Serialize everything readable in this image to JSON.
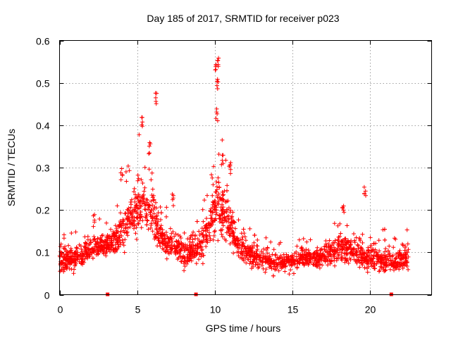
{
  "chart_data": {
    "type": "scatter",
    "title": "Day 185 of 2017, SRMTID for receiver p023",
    "xlabel": "GPS time / hours",
    "ylabel": "SRMTID / TECUs",
    "xlim": [
      0,
      24
    ],
    "ylim": [
      0,
      0.6
    ],
    "xticks": [
      0,
      5,
      10,
      15,
      20
    ],
    "xtick_labels": [
      "0",
      "5",
      "10",
      "15",
      "20"
    ],
    "yticks": [
      0,
      0.1,
      0.2,
      0.3,
      0.4,
      0.5,
      0.6
    ],
    "ytick_labels": [
      "0",
      "0.1",
      "0.2",
      "0.3",
      "0.4",
      "0.5",
      "0.6"
    ],
    "grid": true,
    "marker": "+",
    "color": "#ff0000",
    "gap_markers_x": [
      3.1,
      8.8,
      21.4
    ],
    "envelope": [
      {
        "x": 0.0,
        "mean": 0.08,
        "spread": 0.04
      },
      {
        "x": 1.0,
        "mean": 0.085,
        "spread": 0.045
      },
      {
        "x": 2.0,
        "mean": 0.11,
        "spread": 0.04
      },
      {
        "x": 3.0,
        "mean": 0.115,
        "spread": 0.04
      },
      {
        "x": 4.0,
        "mean": 0.15,
        "spread": 0.07
      },
      {
        "x": 5.0,
        "mean": 0.2,
        "spread": 0.09
      },
      {
        "x": 5.5,
        "mean": 0.22,
        "spread": 0.1
      },
      {
        "x": 6.0,
        "mean": 0.2,
        "spread": 0.1
      },
      {
        "x": 6.5,
        "mean": 0.14,
        "spread": 0.06
      },
      {
        "x": 7.0,
        "mean": 0.12,
        "spread": 0.05
      },
      {
        "x": 8.0,
        "mean": 0.1,
        "spread": 0.05
      },
      {
        "x": 9.0,
        "mean": 0.11,
        "spread": 0.05
      },
      {
        "x": 9.7,
        "mean": 0.17,
        "spread": 0.08
      },
      {
        "x": 10.2,
        "mean": 0.22,
        "spread": 0.12
      },
      {
        "x": 10.8,
        "mean": 0.18,
        "spread": 0.09
      },
      {
        "x": 11.5,
        "mean": 0.12,
        "spread": 0.05
      },
      {
        "x": 12.5,
        "mean": 0.09,
        "spread": 0.04
      },
      {
        "x": 14.0,
        "mean": 0.075,
        "spread": 0.035
      },
      {
        "x": 15.5,
        "mean": 0.085,
        "spread": 0.04
      },
      {
        "x": 17.0,
        "mean": 0.09,
        "spread": 0.04
      },
      {
        "x": 18.0,
        "mean": 0.11,
        "spread": 0.05
      },
      {
        "x": 19.0,
        "mean": 0.1,
        "spread": 0.05
      },
      {
        "x": 20.0,
        "mean": 0.085,
        "spread": 0.045
      },
      {
        "x": 21.5,
        "mean": 0.075,
        "spread": 0.04
      },
      {
        "x": 22.5,
        "mean": 0.09,
        "spread": 0.04
      }
    ],
    "point_count": 2200,
    "peaks": [
      {
        "x": 5.3,
        "y": 0.42
      },
      {
        "x": 6.2,
        "y": 0.48
      },
      {
        "x": 5.8,
        "y": 0.36
      },
      {
        "x": 4.0,
        "y": 0.3
      },
      {
        "x": 10.2,
        "y": 0.565
      },
      {
        "x": 10.1,
        "y": 0.55
      },
      {
        "x": 10.2,
        "y": 0.51
      },
      {
        "x": 10.15,
        "y": 0.44
      },
      {
        "x": 10.5,
        "y": 0.33
      },
      {
        "x": 11.0,
        "y": 0.32
      },
      {
        "x": 18.3,
        "y": 0.22
      },
      {
        "x": 19.7,
        "y": 0.255
      },
      {
        "x": 2.2,
        "y": 0.19
      },
      {
        "x": 7.3,
        "y": 0.24
      }
    ]
  }
}
